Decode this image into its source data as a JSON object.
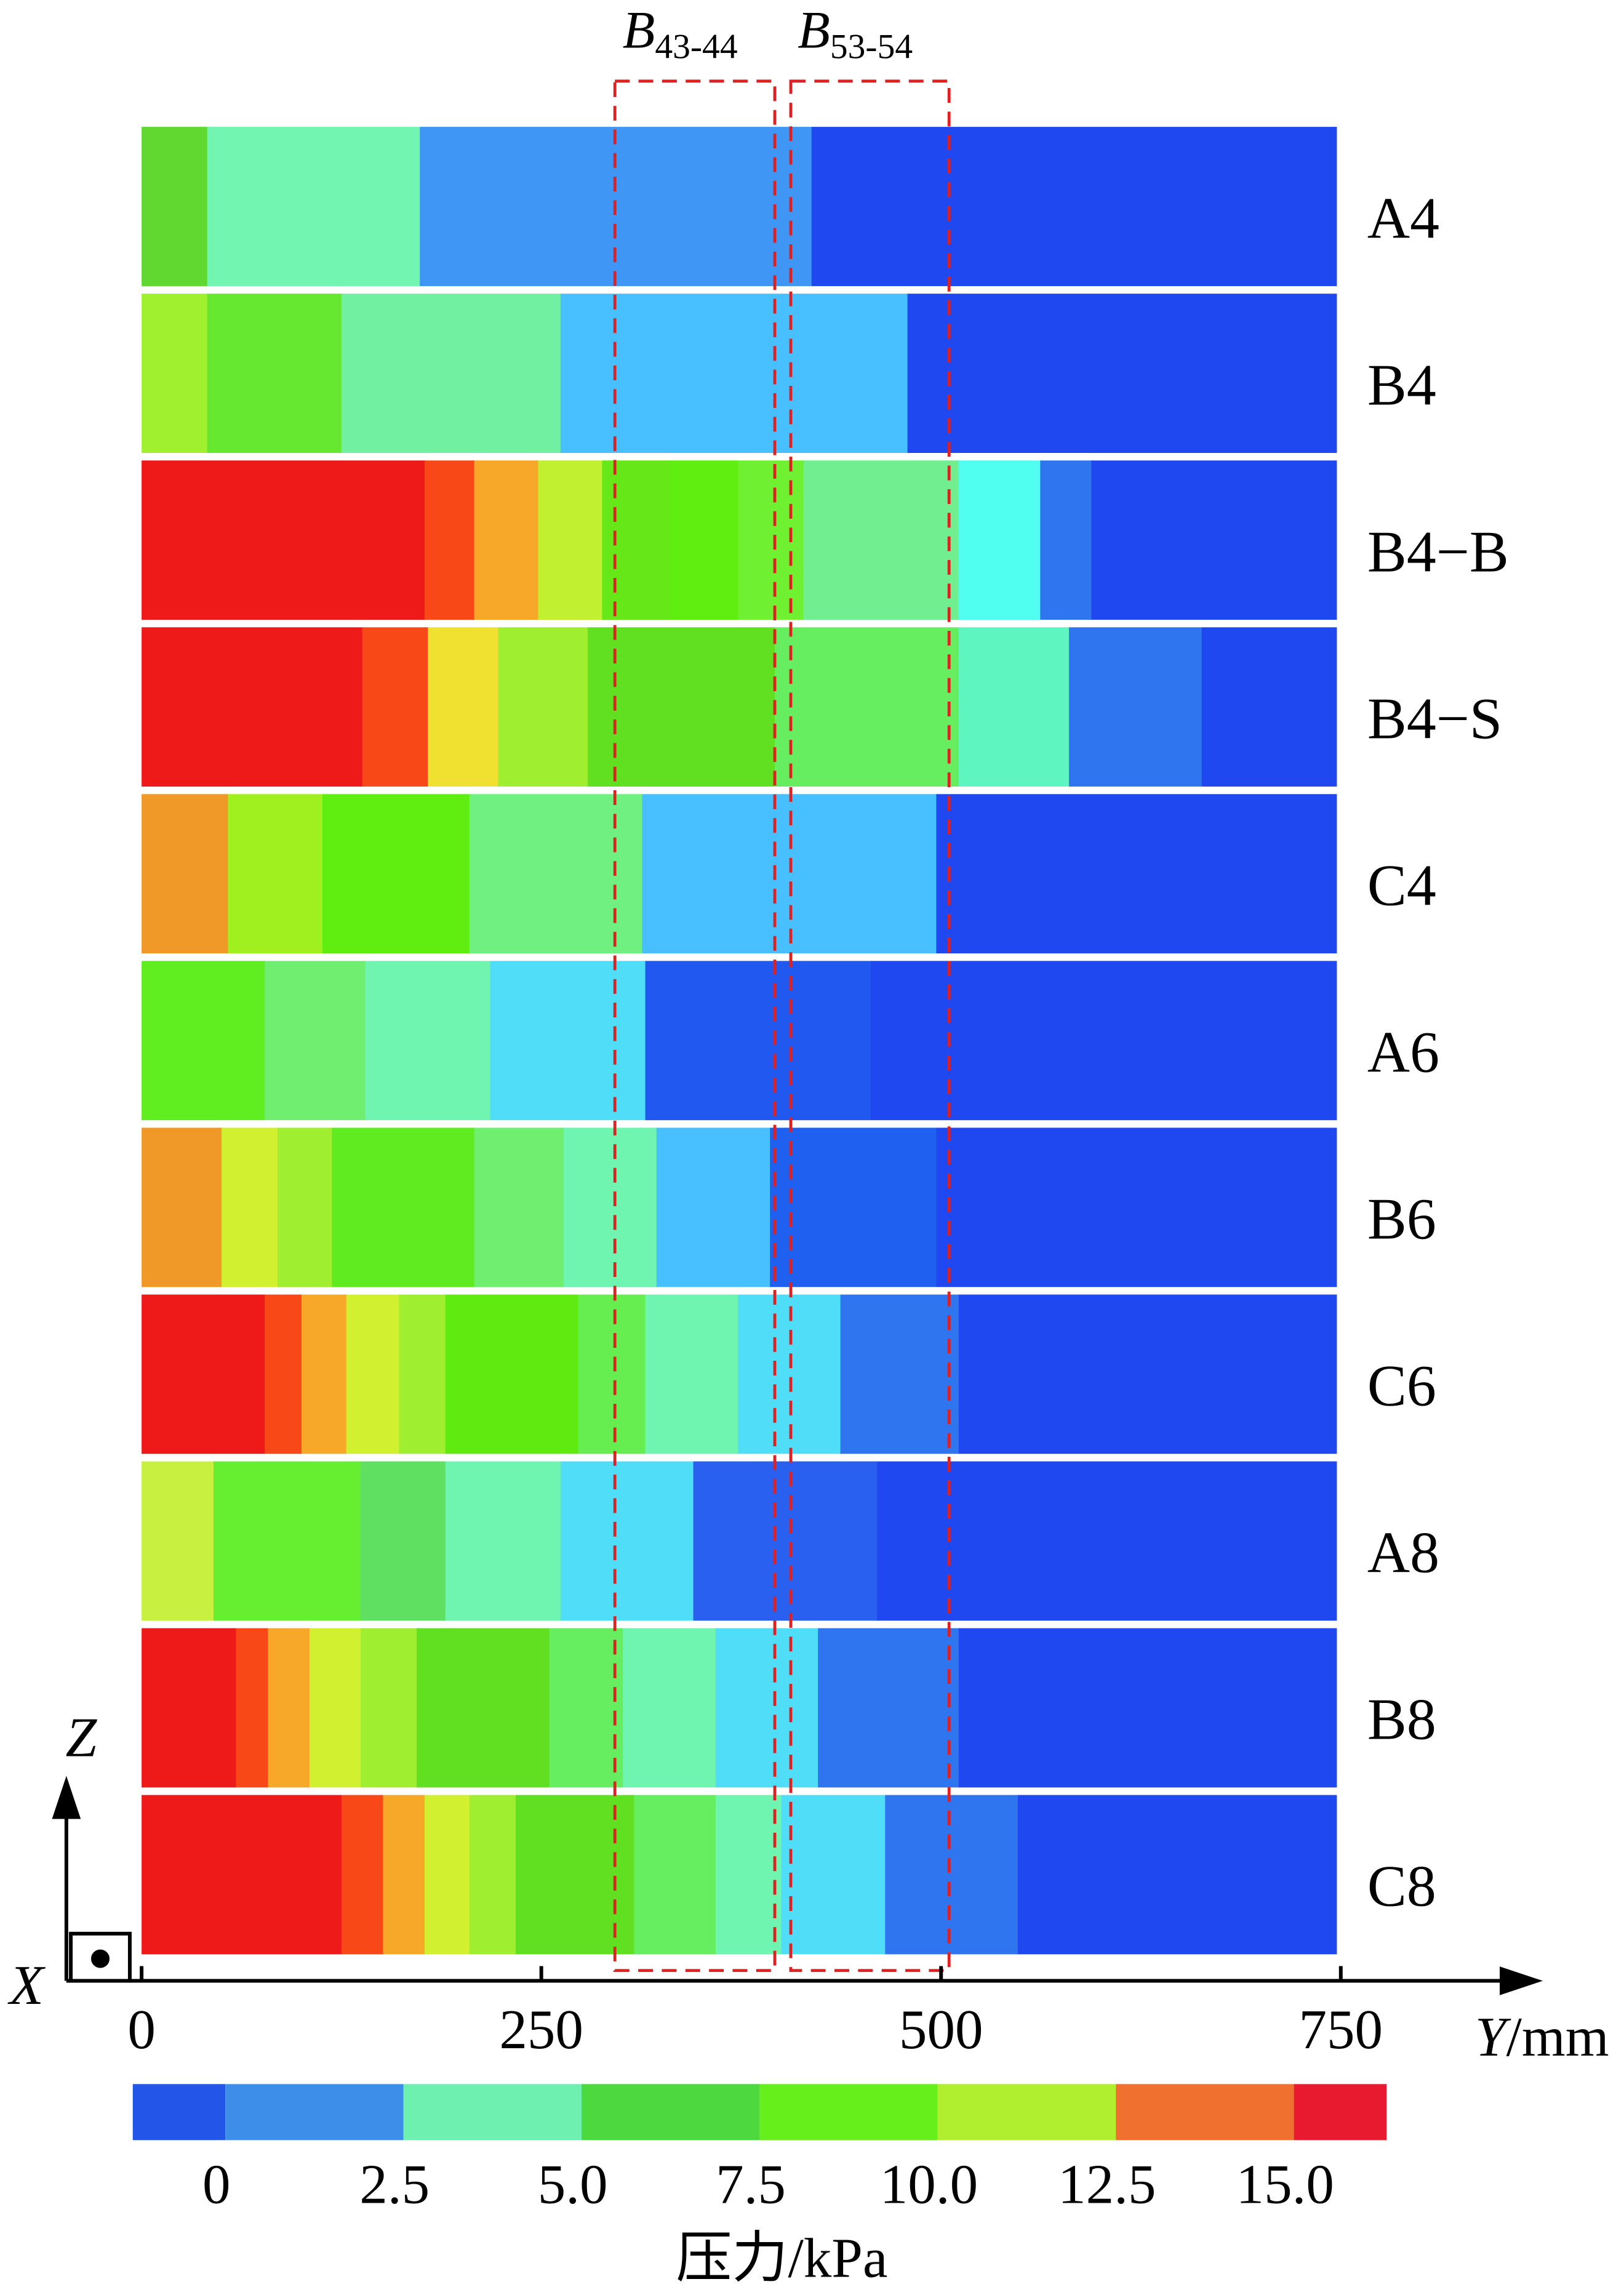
{
  "chart_data": {
    "type": "contour-strips",
    "xlabel_var": "Y",
    "xlabel_unit": "/mm",
    "ylabel_var": "Z",
    "zlabel_var": "X",
    "xlim": [
      0,
      750
    ],
    "xticks": [
      0,
      250,
      500,
      750
    ],
    "strips": [
      {
        "name": "A4",
        "edges": [
          0,
          41,
          174,
          419,
          747
        ],
        "colors": [
          "#60d830",
          "#72f5b0",
          "#3f96f5",
          "#1f48f0"
        ]
      },
      {
        "name": "B4",
        "edges": [
          0,
          41,
          125,
          262,
          479,
          747
        ],
        "colors": [
          "#a0f030",
          "#66e830",
          "#70f0a0",
          "#48c0ff",
          "#1f48f0"
        ]
      },
      {
        "name": "B4−B",
        "edges": [
          0,
          177,
          208,
          248,
          288,
          331,
          373,
          414,
          511,
          562,
          594,
          747
        ],
        "colors": [
          "#ee1a1a",
          "#f84818",
          "#f8a828",
          "#c0f030",
          "#66e818",
          "#60ee10",
          "#6ff030",
          "#70ee90",
          "#50fff0",
          "#3075f0",
          "#1f48f0"
        ]
      },
      {
        "name": "B4−S",
        "edges": [
          0,
          138,
          179,
          223,
          279,
          396,
          511,
          580,
          663,
          747
        ],
        "colors": [
          "#ee1a1a",
          "#f84818",
          "#f0e030",
          "#a0ee30",
          "#60e020",
          "#66ee60",
          "#5ff5c0",
          "#3075f0",
          "#1f48f0"
        ]
      },
      {
        "name": "C4",
        "edges": [
          0,
          54,
          113,
          205,
          313,
          497,
          747
        ],
        "colors": [
          "#f09828",
          "#a0f020",
          "#60ee10",
          "#70f080",
          "#48c0ff",
          "#1f48f0"
        ]
      },
      {
        "name": "A6",
        "edges": [
          0,
          77,
          140,
          218,
          315,
          456,
          747
        ],
        "colors": [
          "#60ee20",
          "#70ee70",
          "#70f5b0",
          "#50ddf8",
          "#2058f0",
          "#1f48f0"
        ]
      },
      {
        "name": "B6",
        "edges": [
          0,
          50,
          85,
          119,
          208,
          264,
          322,
          393,
          497,
          747
        ],
        "colors": [
          "#f09828",
          "#d0f030",
          "#a0ee30",
          "#60ea20",
          "#70ee70",
          "#70f5b0",
          "#48c0ff",
          "#2060f0",
          "#1f48f0"
        ]
      },
      {
        "name": "C6",
        "edges": [
          0,
          77,
          100,
          128,
          161,
          190,
          273,
          315,
          373,
          437,
          511,
          747
        ],
        "colors": [
          "#ee1a1a",
          "#f84818",
          "#f8a828",
          "#d0f030",
          "#a0ee30",
          "#60ea10",
          "#66ee50",
          "#70f5b0",
          "#50ddf8",
          "#3075f0",
          "#1f48f0"
        ]
      },
      {
        "name": "A8",
        "edges": [
          0,
          45,
          137,
          190,
          262,
          345,
          460,
          747
        ],
        "colors": [
          "#c8f040",
          "#66ee30",
          "#60e060",
          "#70f5b0",
          "#50ddf8",
          "#2a60f0",
          "#1f48f0"
        ]
      },
      {
        "name": "B8",
        "edges": [
          0,
          59,
          79,
          105,
          137,
          172,
          255,
          301,
          359,
          423,
          511,
          747
        ],
        "colors": [
          "#ee1a1a",
          "#f84818",
          "#f8a828",
          "#d0f030",
          "#a0ee30",
          "#60e020",
          "#66ee60",
          "#70f5b0",
          "#50ddf8",
          "#3075f0",
          "#1f48f0"
        ]
      },
      {
        "name": "C8",
        "edges": [
          0,
          125,
          151,
          177,
          205,
          234,
          308,
          359,
          400,
          465,
          548,
          747
        ],
        "colors": [
          "#ee1a1a",
          "#f84818",
          "#f8a828",
          "#d0f030",
          "#a0ee30",
          "#60e020",
          "#66ee60",
          "#70f5b0",
          "#50ddf8",
          "#3075f0",
          "#1f48f0"
        ]
      }
    ],
    "regions": [
      {
        "letter": "B",
        "sub": "43-44",
        "range": [
          296,
          396
        ],
        "color": "#e02020"
      },
      {
        "letter": "B",
        "sub": "53-54",
        "range": [
          406,
          505
        ],
        "color": "#e02020"
      }
    ],
    "colorbar": {
      "label": "压力/kPa",
      "clim": [
        -1.3,
        16.3
      ],
      "colors": [
        "#2255e8",
        "#3d8ee8",
        "#6ef0b0",
        "#4ed840",
        "#66ef1a",
        "#b0ee30",
        "#f07030",
        "#e81a30"
      ],
      "ticks": [
        0,
        2.5,
        {
          "value": 5,
          "label": "5.0"
        },
        7.5,
        {
          "value": 10,
          "label": "10.0"
        },
        12.5,
        {
          "value": 15,
          "label": "15.0"
        }
      ]
    }
  }
}
